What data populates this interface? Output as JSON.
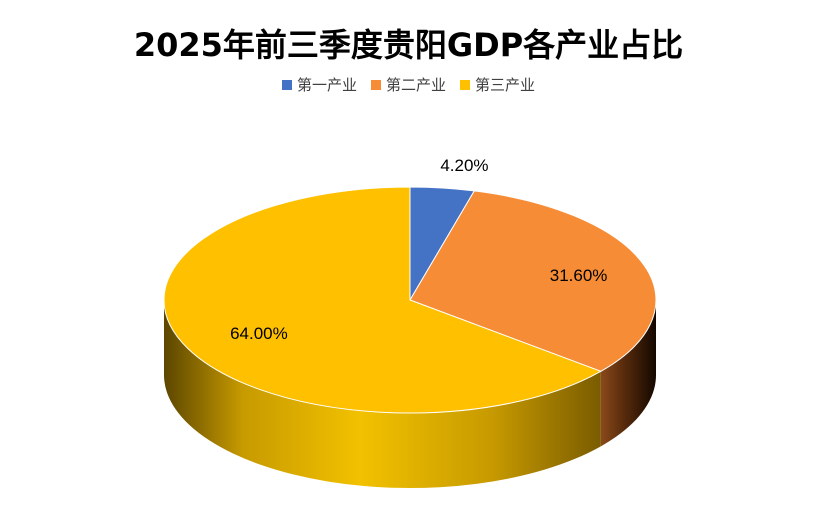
{
  "chart_data": {
    "type": "pie",
    "title": "2025年前三季度贵阳GDP各产业占比",
    "categories": [
      "第一产业",
      "第二产业",
      "第三产业"
    ],
    "values": [
      4.2,
      31.6,
      64.0
    ],
    "labels": [
      "4.20%",
      "31.60%",
      "64.00%"
    ],
    "colors": [
      "#4472C4",
      "#F68C35",
      "#FFC000"
    ],
    "legend_position": "top",
    "style": "3d"
  }
}
